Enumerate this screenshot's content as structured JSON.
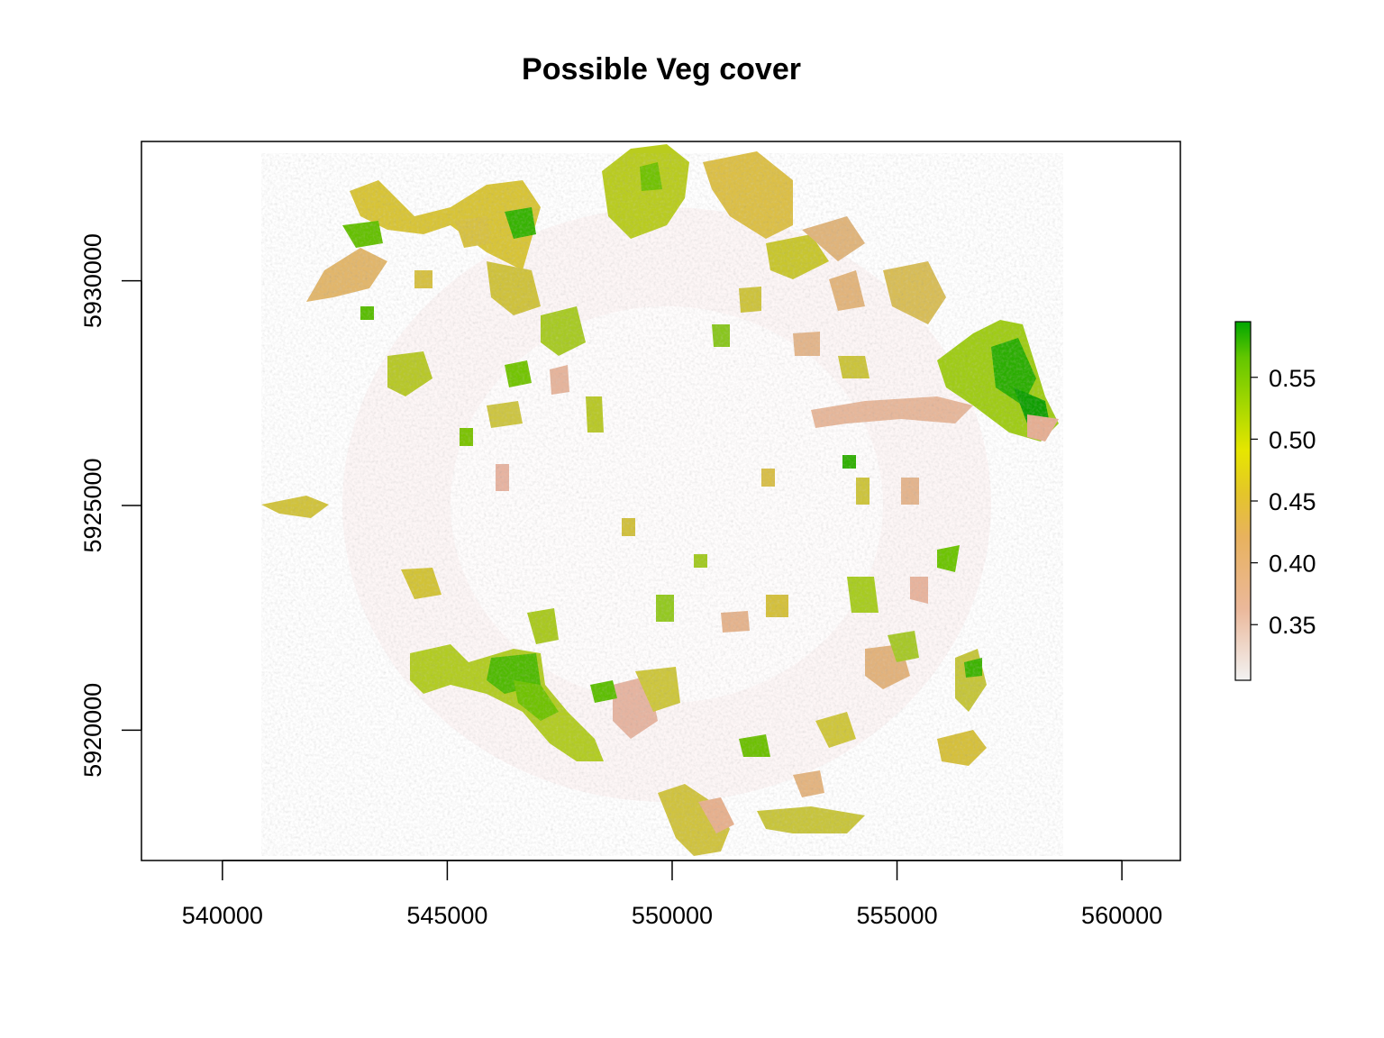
{
  "title": "Possible Veg cover",
  "chart_data": {
    "type": "heatmap",
    "title": "Possible Veg cover",
    "xlabel": "",
    "ylabel": "",
    "x_ticks": [
      540000,
      545000,
      550000,
      555000,
      560000
    ],
    "y_ticks": [
      5920000,
      5925000,
      5930000
    ],
    "xlim": [
      538200,
      561300
    ],
    "ylim": [
      5917100,
      5933100
    ],
    "legend": {
      "placement": "right",
      "ticks": [
        "0.55",
        "0.50",
        "0.45",
        "0.40",
        "0.35"
      ],
      "tick_values": [
        0.55,
        0.5,
        0.45,
        0.4,
        0.35
      ],
      "range": [
        0.305,
        0.595
      ],
      "colors": [
        "#f2f2f2",
        "#ebb89a",
        "#e8b25e",
        "#e4c52a",
        "#e6e600",
        "#9fd600",
        "#63c600",
        "#00a600"
      ]
    },
    "grid": false
  }
}
